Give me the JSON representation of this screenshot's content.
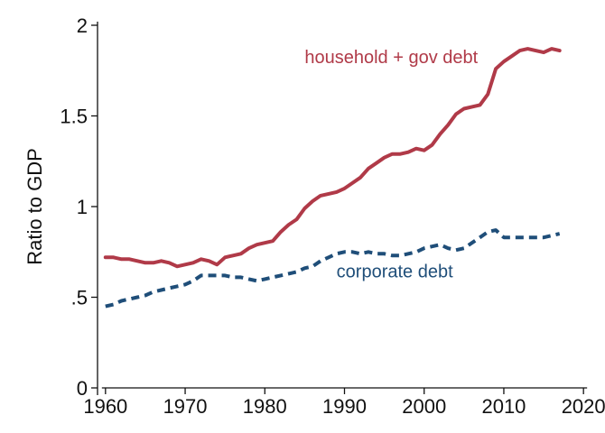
{
  "chart_data": {
    "type": "line",
    "title": "",
    "xlabel": "",
    "ylabel": "Ratio to GDP",
    "xlim": [
      1959,
      2021
    ],
    "ylim": [
      0,
      2
    ],
    "x_ticks": [
      1960,
      1970,
      1980,
      1990,
      2000,
      2010,
      2020
    ],
    "x_tick_labels": [
      "1960",
      "1970",
      "1980",
      "1990",
      "2000",
      "2010",
      "2020"
    ],
    "y_ticks": [
      0,
      0.5,
      1,
      1.5,
      2
    ],
    "y_tick_labels": [
      "0",
      ".5",
      "1",
      "1.5",
      "2"
    ],
    "grid": false,
    "legend": "inline labels",
    "series": [
      {
        "name": "household + gov debt",
        "color": "#b03a48",
        "style": "solid",
        "label_at": [
          1985,
          1.79
        ],
        "x": [
          1960,
          1961,
          1962,
          1963,
          1964,
          1965,
          1966,
          1967,
          1968,
          1969,
          1970,
          1971,
          1972,
          1973,
          1974,
          1975,
          1976,
          1977,
          1978,
          1979,
          1980,
          1981,
          1982,
          1983,
          1984,
          1985,
          1986,
          1987,
          1988,
          1989,
          1990,
          1991,
          1992,
          1993,
          1994,
          1995,
          1996,
          1997,
          1998,
          1999,
          2000,
          2001,
          2002,
          2003,
          2004,
          2005,
          2006,
          2007,
          2008,
          2009,
          2010,
          2011,
          2012,
          2013,
          2014,
          2015,
          2016,
          2017
        ],
        "values": [
          0.72,
          0.72,
          0.71,
          0.71,
          0.7,
          0.69,
          0.69,
          0.7,
          0.69,
          0.67,
          0.68,
          0.69,
          0.71,
          0.7,
          0.68,
          0.72,
          0.73,
          0.74,
          0.77,
          0.79,
          0.8,
          0.81,
          0.86,
          0.9,
          0.93,
          0.99,
          1.03,
          1.06,
          1.07,
          1.08,
          1.1,
          1.13,
          1.16,
          1.21,
          1.24,
          1.27,
          1.29,
          1.29,
          1.3,
          1.32,
          1.31,
          1.34,
          1.4,
          1.45,
          1.51,
          1.54,
          1.55,
          1.56,
          1.62,
          1.76,
          1.8,
          1.83,
          1.86,
          1.87,
          1.86,
          1.85,
          1.87,
          1.86
        ]
      },
      {
        "name": "corporate debt",
        "color": "#1f4e79",
        "style": "dashed",
        "label_at": [
          1989,
          0.61
        ],
        "x": [
          1960,
          1961,
          1962,
          1963,
          1964,
          1965,
          1966,
          1967,
          1968,
          1969,
          1970,
          1971,
          1972,
          1973,
          1974,
          1975,
          1976,
          1977,
          1978,
          1979,
          1980,
          1981,
          1982,
          1983,
          1984,
          1985,
          1986,
          1987,
          1988,
          1989,
          1990,
          1991,
          1992,
          1993,
          1994,
          1995,
          1996,
          1997,
          1998,
          1999,
          2000,
          2001,
          2002,
          2003,
          2004,
          2005,
          2006,
          2007,
          2008,
          2009,
          2010,
          2011,
          2012,
          2013,
          2014,
          2015,
          2016,
          2017
        ],
        "values": [
          0.45,
          0.46,
          0.48,
          0.49,
          0.5,
          0.51,
          0.53,
          0.54,
          0.55,
          0.56,
          0.57,
          0.59,
          0.62,
          0.62,
          0.62,
          0.62,
          0.61,
          0.61,
          0.6,
          0.59,
          0.6,
          0.61,
          0.62,
          0.63,
          0.64,
          0.66,
          0.67,
          0.7,
          0.72,
          0.74,
          0.75,
          0.75,
          0.74,
          0.75,
          0.74,
          0.74,
          0.73,
          0.73,
          0.74,
          0.75,
          0.77,
          0.78,
          0.79,
          0.77,
          0.76,
          0.77,
          0.8,
          0.83,
          0.86,
          0.87,
          0.83,
          0.83,
          0.83,
          0.83,
          0.83,
          0.83,
          0.84,
          0.85
        ]
      }
    ]
  }
}
